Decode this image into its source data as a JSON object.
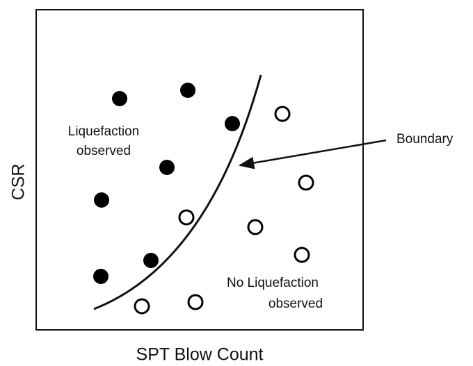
{
  "axes": {
    "y_label": "CSR",
    "x_label": "SPT Blow Count"
  },
  "annotations": {
    "liquefaction": [
      "Liquefaction",
      "observed"
    ],
    "no_liquefaction": [
      "No Liquefaction",
      "observed"
    ],
    "boundary": "Boundary"
  }
}
